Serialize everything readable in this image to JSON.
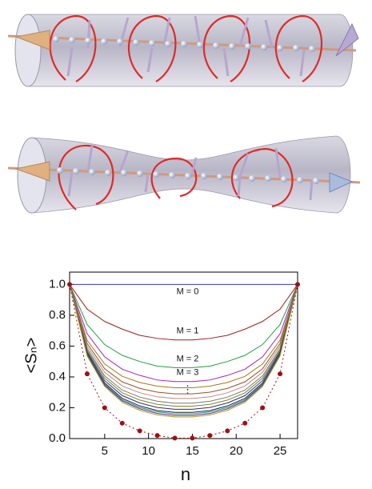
{
  "chart_data": {
    "type": "line",
    "x_label": "n",
    "y_label": "<Sₙ>",
    "x": [
      1,
      3,
      5,
      7,
      9,
      11,
      13,
      15,
      17,
      19,
      21,
      23,
      25,
      27
    ],
    "xlim": [
      1,
      27
    ],
    "xticks": [
      5,
      10,
      15,
      20,
      25
    ],
    "ylim": [
      0,
      1.08
    ],
    "yticks": [
      {
        "value": 0,
        "label": "0.0"
      },
      0.2,
      0.4,
      0.6,
      0.8,
      {
        "value": 1,
        "label": "1.0"
      }
    ],
    "annotations": [
      "⋮"
    ],
    "series": [
      {
        "name": "M = 0",
        "color": "#3535c8",
        "values": [
          1,
          1,
          1,
          1,
          1,
          1,
          1,
          1,
          1,
          1,
          1,
          1,
          1,
          1
        ]
      },
      {
        "name": "M = 1",
        "color": "#a01c1c",
        "values": [
          1,
          0.84,
          0.76,
          0.71,
          0.67,
          0.65,
          0.64,
          0.64,
          0.65,
          0.67,
          0.71,
          0.76,
          0.84,
          1
        ]
      },
      {
        "name": "M = 2",
        "color": "#1f9e45",
        "values": [
          1,
          0.74,
          0.61,
          0.54,
          0.5,
          0.47,
          0.46,
          0.46,
          0.47,
          0.5,
          0.54,
          0.61,
          0.74,
          1
        ]
      },
      {
        "name": "M = 3",
        "color": "#a020c0",
        "values": [
          1,
          0.68,
          0.53,
          0.45,
          0.41,
          0.38,
          0.37,
          0.37,
          0.38,
          0.41,
          0.45,
          0.53,
          0.68,
          1
        ]
      },
      {
        "color": "#a07a1a",
        "values": [
          1,
          0.638,
          0.484,
          0.404,
          0.364,
          0.34,
          0.33,
          0.33,
          0.34,
          0.364,
          0.404,
          0.484,
          0.638,
          1
        ]
      },
      {
        "color": "#9a4f2a",
        "values": [
          1,
          0.617,
          0.453,
          0.368,
          0.326,
          0.301,
          0.29,
          0.29,
          0.301,
          0.326,
          0.368,
          0.453,
          0.617,
          1
        ]
      },
      {
        "color": "#c08a7a",
        "values": [
          1,
          0.6,
          0.43,
          0.341,
          0.297,
          0.271,
          0.26,
          0.26,
          0.271,
          0.297,
          0.341,
          0.43,
          0.6,
          1
        ]
      },
      {
        "color": "#777777",
        "values": [
          1,
          0.584,
          0.407,
          0.315,
          0.269,
          0.242,
          0.23,
          0.23,
          0.242,
          0.269,
          0.315,
          0.407,
          0.584,
          1
        ]
      },
      {
        "color": "#7a8a1a",
        "values": [
          1,
          0.573,
          0.392,
          0.297,
          0.25,
          0.222,
          0.21,
          0.21,
          0.222,
          0.25,
          0.297,
          0.392,
          0.573,
          1
        ]
      },
      {
        "color": "#2a2a90",
        "values": [
          1,
          0.563,
          0.376,
          0.279,
          0.231,
          0.202,
          0.19,
          0.19,
          0.202,
          0.231,
          0.279,
          0.376,
          0.563,
          1
        ]
      },
      {
        "color": "#202020",
        "values": [
          1,
          0.552,
          0.361,
          0.261,
          0.212,
          0.182,
          0.17,
          0.17,
          0.182,
          0.212,
          0.261,
          0.361,
          0.552,
          1
        ]
      },
      {
        "color": "#1a8a8a",
        "values": [
          1,
          0.546,
          0.353,
          0.252,
          0.202,
          0.173,
          0.16,
          0.16,
          0.173,
          0.202,
          0.252,
          0.353,
          0.546,
          1
        ]
      },
      {
        "color": "#5a2a8a",
        "values": [
          1,
          0.541,
          0.346,
          0.244,
          0.193,
          0.163,
          0.15,
          0.15,
          0.163,
          0.193,
          0.244,
          0.346,
          0.541,
          1
        ]
      },
      {
        "color": "#b0a020",
        "values": [
          1,
          0.536,
          0.338,
          0.235,
          0.183,
          0.153,
          0.14,
          0.14,
          0.153,
          0.183,
          0.235,
          0.338,
          0.536,
          1
        ]
      },
      {
        "color": "#a01010",
        "style": "dotted",
        "markers": true,
        "values": [
          1,
          0.42,
          0.2,
          0.1,
          0.05,
          0.02,
          0.003,
          0.003,
          0.02,
          0.05,
          0.1,
          0.2,
          0.42,
          1
        ]
      }
    ]
  }
}
